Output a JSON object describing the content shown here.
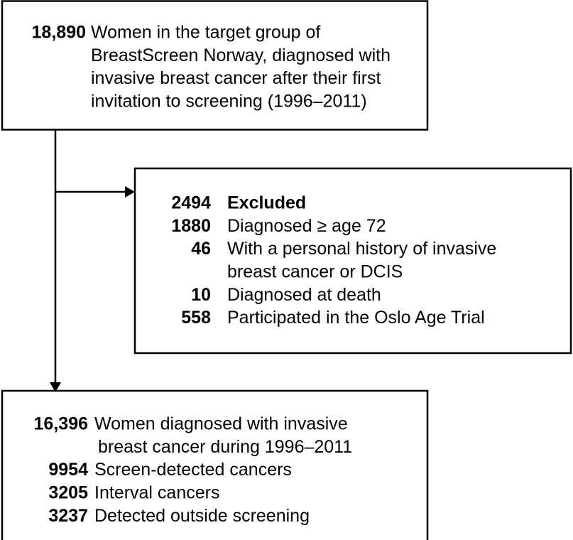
{
  "boxes": [
    {
      "number": "18,890",
      "lines": [
        "Women in the target group of",
        "BreastScreen Norway, diagnosed with",
        "invasive breast cancer after their first",
        "invitation to screening (1996–2011)"
      ]
    },
    {
      "rows": [
        {
          "number": "2494",
          "lines": [
            "Excluded"
          ]
        },
        {
          "number": "1880",
          "lines": [
            "Diagnosed ≥ age 72"
          ]
        },
        {
          "number": "46",
          "lines": [
            "With a personal history of invasive",
            "breast cancer or DCIS"
          ]
        },
        {
          "number": "10",
          "lines": [
            "Diagnosed at death"
          ]
        },
        {
          "number": "558",
          "lines": [
            "Participated in the Oslo Age Trial"
          ]
        }
      ]
    },
    {
      "rows": [
        {
          "number": "16,396",
          "lines": [
            "Women diagnosed with invasive",
            "breast cancer during 1996–2011"
          ]
        },
        {
          "number": "9954",
          "lines": [
            "Screen-detected cancers"
          ]
        },
        {
          "number": "3205",
          "lines": [
            "Interval cancers"
          ]
        },
        {
          "number": "3237",
          "lines": [
            "Detected outside screening"
          ]
        }
      ]
    }
  ]
}
